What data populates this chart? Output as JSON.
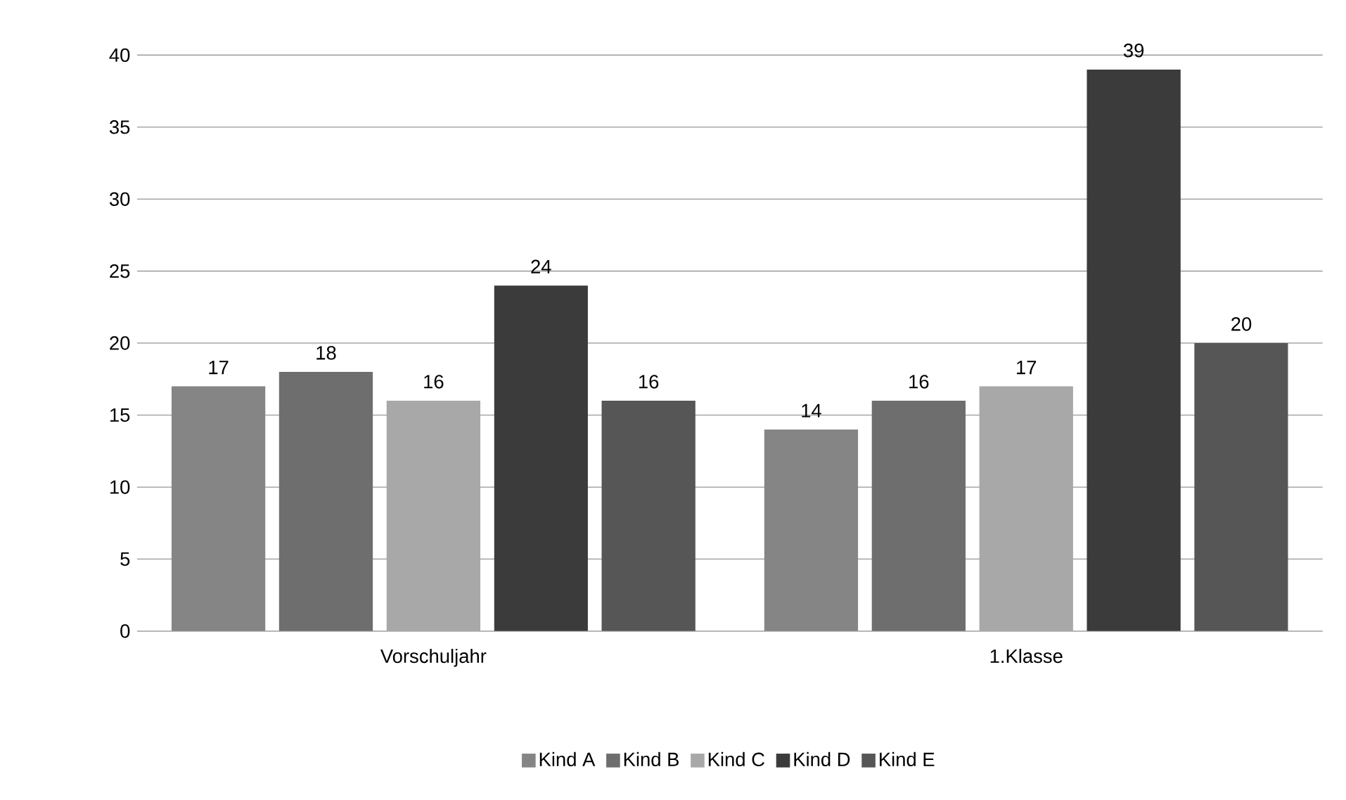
{
  "chart_data": {
    "type": "bar",
    "categories": [
      "Vorschuljahr",
      "1.Klasse"
    ],
    "series": [
      {
        "name": "Kind A",
        "color": "#858585",
        "values": [
          17,
          14
        ]
      },
      {
        "name": "Kind B",
        "color": "#6e6e6e",
        "values": [
          18,
          16
        ]
      },
      {
        "name": "Kind C",
        "color": "#a8a8a8",
        "values": [
          16,
          17
        ]
      },
      {
        "name": "Kind D",
        "color": "#3b3b3b",
        "values": [
          24,
          39
        ]
      },
      {
        "name": "Kind E",
        "color": "#565656",
        "values": [
          16,
          20
        ]
      }
    ],
    "ylim": [
      0,
      40
    ],
    "yticks": [
      0,
      5,
      10,
      15,
      20,
      25,
      30,
      35,
      40
    ],
    "grid": "y",
    "legend": "bottom",
    "data_labels": true
  }
}
